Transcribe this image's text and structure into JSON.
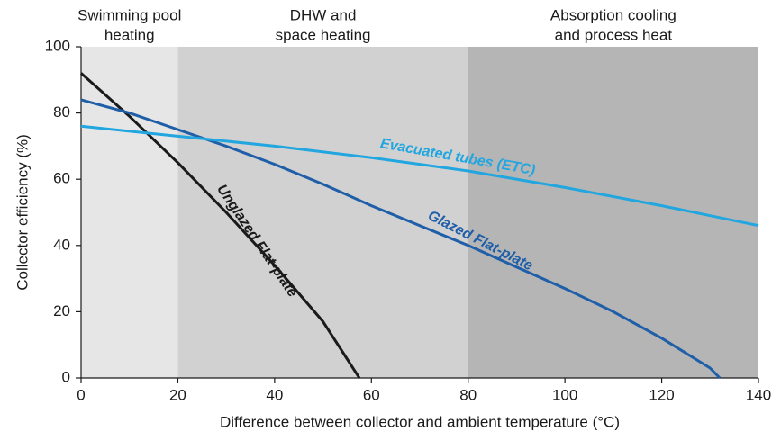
{
  "chart_data": {
    "type": "line",
    "xlabel": "Difference between collector and ambient temperature (°C)",
    "ylabel": "Collector efficiency (%)",
    "xlim": [
      0,
      140
    ],
    "ylim": [
      0,
      100
    ],
    "xticks": [
      0,
      20,
      40,
      60,
      80,
      100,
      120,
      140
    ],
    "yticks": [
      0,
      20,
      40,
      60,
      80,
      100
    ],
    "regions": [
      {
        "from": 0,
        "to": 20,
        "color": "#e6e6e6",
        "label": [
          "Swimming pool",
          "heating"
        ]
      },
      {
        "from": 20,
        "to": 80,
        "color": "#d1d1d1",
        "label": [
          "DHW and",
          "space heating"
        ]
      },
      {
        "from": 80,
        "to": 140,
        "color": "#b5b5b5",
        "label": [
          "Absorption cooling",
          "and process heat"
        ]
      }
    ],
    "series": [
      {
        "name": "Unglazed Flat-plate",
        "color": "#1a1a1a",
        "x": [
          0,
          10,
          20,
          30,
          40,
          50,
          57.5
        ],
        "values": [
          92,
          79,
          65,
          50,
          34,
          17,
          0
        ]
      },
      {
        "name": "Glazed Flat-plate",
        "color": "#1f5ea8",
        "x": [
          0,
          10,
          20,
          30,
          40,
          50,
          60,
          70,
          80,
          90,
          100,
          110,
          120,
          130,
          132
        ],
        "values": [
          84,
          80,
          75,
          70,
          64.5,
          58.5,
          52,
          46,
          40,
          33.5,
          27,
          20,
          12,
          3,
          0
        ]
      },
      {
        "name": "Evacuated tubes (ETC)",
        "color": "#21a6e0",
        "x": [
          0,
          20,
          40,
          60,
          80,
          100,
          120,
          140
        ],
        "values": [
          76,
          73,
          70,
          66.5,
          62.5,
          57.5,
          52,
          46
        ]
      }
    ]
  }
}
